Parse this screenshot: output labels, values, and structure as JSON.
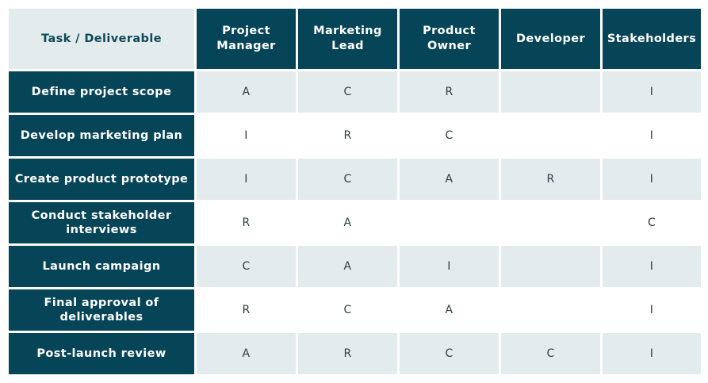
{
  "table": {
    "corner_label": "Task / Deliverable",
    "roles": [
      {
        "line1": "Project",
        "line2": "Manager"
      },
      {
        "line1": "Marketing",
        "line2": "Lead"
      },
      {
        "line1": "Product",
        "line2": "Owner"
      },
      {
        "line1": "Developer",
        "line2": ""
      },
      {
        "line1": "Stakeholders",
        "line2": ""
      }
    ],
    "rows": [
      {
        "task_line1": "Define project scope",
        "task_line2": "",
        "values": [
          "A",
          "C",
          "R",
          "",
          "I"
        ]
      },
      {
        "task_line1": "Develop marketing plan",
        "task_line2": "",
        "values": [
          "I",
          "R",
          "C",
          "",
          "I"
        ]
      },
      {
        "task_line1": "Create product prototype",
        "task_line2": "",
        "values": [
          "I",
          "C",
          "A",
          "R",
          "I"
        ]
      },
      {
        "task_line1": "Conduct stakeholder",
        "task_line2": "interviews",
        "values": [
          "R",
          "A",
          "",
          "",
          "C"
        ]
      },
      {
        "task_line1": "Launch campaign",
        "task_line2": "",
        "values": [
          "C",
          "A",
          "I",
          "",
          "I"
        ]
      },
      {
        "task_line1": "Final approval of",
        "task_line2": "deliverables",
        "values": [
          "R",
          "C",
          "A",
          "",
          "I"
        ]
      },
      {
        "task_line1": "Post-launch review",
        "task_line2": "",
        "values": [
          "A",
          "R",
          "C",
          "C",
          "I"
        ]
      }
    ],
    "colors": {
      "header_bg": "#064457",
      "header_text": "#ffffff",
      "shaded_row_bg": "#e4ebec",
      "cell_text": "#2c3e45",
      "corner_text": "#0c4a5b"
    }
  }
}
